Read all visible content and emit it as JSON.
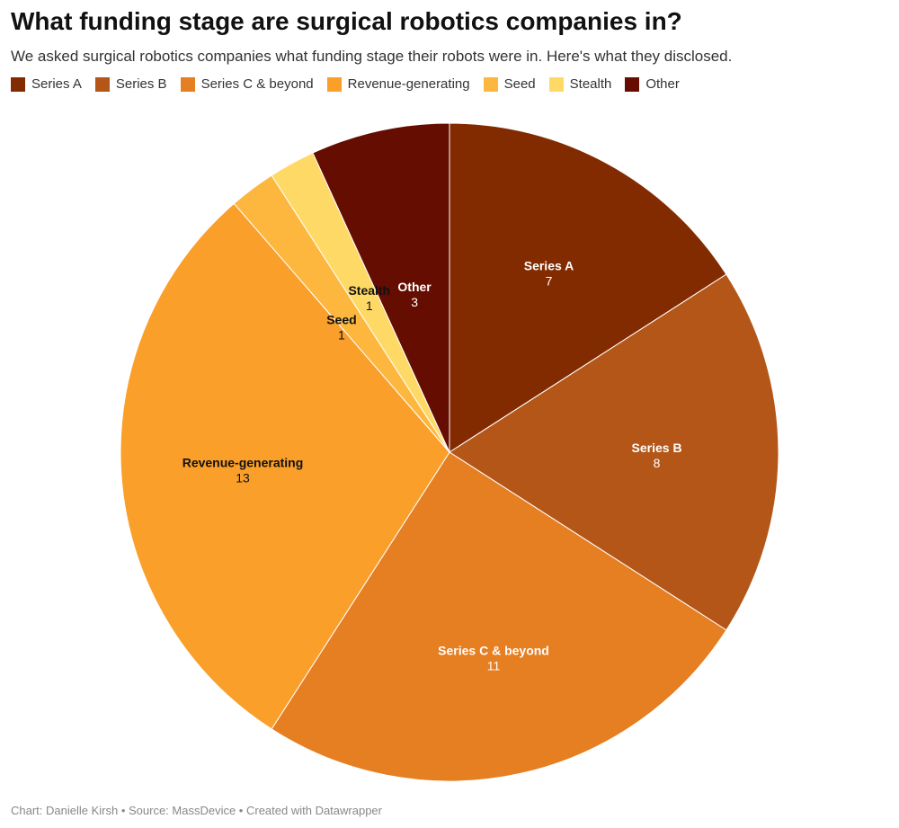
{
  "title": "What funding stage are surgical robotics companies in?",
  "subtitle": "We asked surgical robotics companies what funding stage their robots were in. Here's what they disclosed.",
  "footer": "Chart: Danielle Kirsh • Source: MassDevice • Created with Datawrapper",
  "chart_data": {
    "type": "pie",
    "title": "What funding stage are surgical robotics companies in?",
    "legend": "top-left",
    "slices": [
      {
        "label": "Series A",
        "value": 7,
        "color": "#832b00",
        "text_color": "#ffffff"
      },
      {
        "label": "Series B",
        "value": 8,
        "color": "#b45618",
        "text_color": "#ffffff"
      },
      {
        "label": "Series C & beyond",
        "value": 11,
        "color": "#e67e22",
        "text_color": "#ffffff"
      },
      {
        "label": "Revenue-generating",
        "value": 13,
        "color": "#fa9f2a",
        "text_color": "#111111"
      },
      {
        "label": "Seed",
        "value": 1,
        "color": "#fdb73f",
        "text_color": "#111111"
      },
      {
        "label": "Stealth",
        "value": 1,
        "color": "#ffd966",
        "text_color": "#111111"
      },
      {
        "label": "Other",
        "value": 3,
        "color": "#650d00",
        "text_color": "#ffffff"
      }
    ]
  }
}
